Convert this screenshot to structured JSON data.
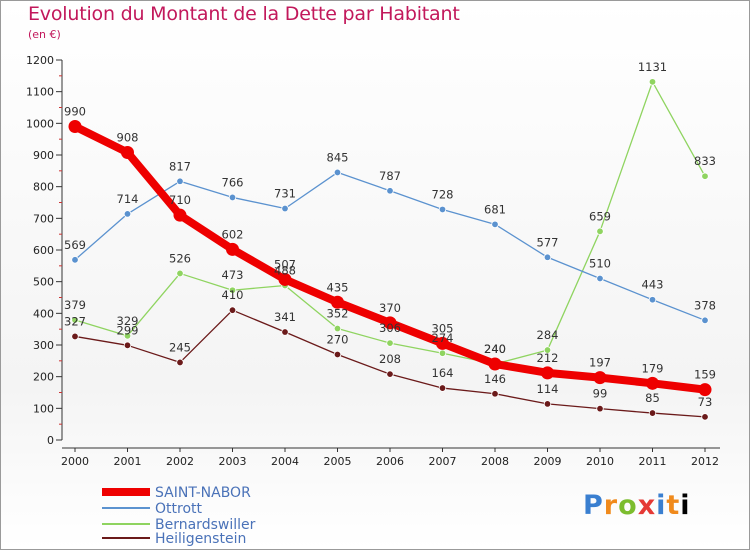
{
  "title": "Evolution du Montant de la Dette par Habitant",
  "unit": "(en €)",
  "logo": "Proxiti",
  "chart_data": {
    "type": "line",
    "x": [
      "2000",
      "2001",
      "2002",
      "2003",
      "2004",
      "2005",
      "2006",
      "2007",
      "2008",
      "2009",
      "2010",
      "2011",
      "2012"
    ],
    "yticks": [
      0,
      100,
      200,
      300,
      400,
      500,
      600,
      700,
      800,
      900,
      1000,
      1100,
      1200
    ],
    "ylim": [
      0,
      1200
    ],
    "grid": false,
    "legend": "bottom-left",
    "series": [
      {
        "name": "SAINT-NABOR",
        "color": "#ee0000",
        "values": [
          990,
          908,
          710,
          602,
          507,
          435,
          370,
          305,
          240,
          212,
          197,
          179,
          159
        ]
      },
      {
        "name": "Ottrott",
        "color": "#5b92cf",
        "values": [
          569,
          714,
          817,
          766,
          731,
          845,
          787,
          728,
          681,
          577,
          510,
          443,
          378
        ]
      },
      {
        "name": "Bernardswiller",
        "color": "#8fd460",
        "values": [
          379,
          329,
          526,
          473,
          488,
          352,
          306,
          274,
          240,
          284,
          659,
          1131,
          833
        ]
      },
      {
        "name": "Heiligenstein",
        "color": "#6b1a1a",
        "values": [
          327,
          299,
          245,
          410,
          341,
          270,
          208,
          164,
          146,
          114,
          99,
          85,
          73
        ]
      }
    ]
  }
}
